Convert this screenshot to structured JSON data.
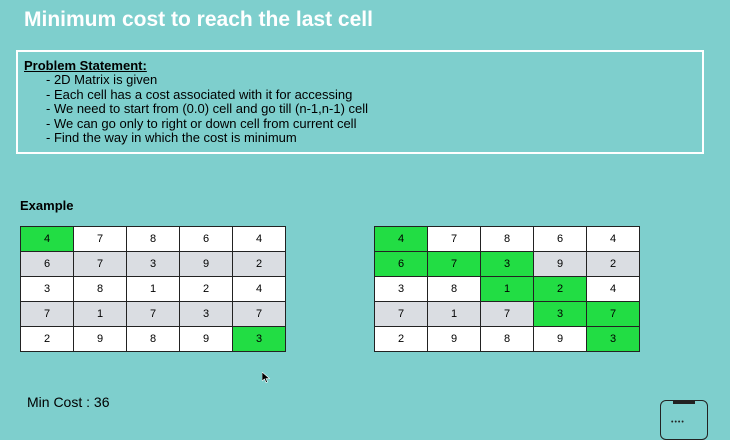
{
  "title": "Minimum cost to reach the last cell",
  "problem": {
    "heading": "Problem Statement:",
    "items": [
      "2D Matrix is given",
      "Each cell has a cost associated with it for accessing",
      "We need to start from (0.0) cell and go till (n-1,n-1) cell",
      "We can go only to right or down cell from current cell",
      "Find the way in which the cost is minimum"
    ]
  },
  "example_label": "Example",
  "matrix": [
    [
      "4",
      "7",
      "8",
      "6",
      "4"
    ],
    [
      "6",
      "7",
      "3",
      "9",
      "2"
    ],
    [
      "3",
      "8",
      "1",
      "2",
      "4"
    ],
    [
      "7",
      "1",
      "7",
      "3",
      "7"
    ],
    [
      "2",
      "9",
      "8",
      "9",
      "3"
    ]
  ],
  "highlight_color": "#22dd44",
  "left_highlights": [
    [
      0,
      0
    ],
    [
      4,
      4
    ]
  ],
  "right_highlights": [
    [
      0,
      0
    ],
    [
      1,
      0
    ],
    [
      1,
      1
    ],
    [
      1,
      2
    ],
    [
      2,
      2
    ],
    [
      2,
      3
    ],
    [
      3,
      3
    ],
    [
      3,
      4
    ],
    [
      4,
      4
    ]
  ],
  "min_cost": "Min Cost : 36",
  "icons": {
    "cursor": "mouse-cursor-icon",
    "device": "tablet-icon"
  }
}
